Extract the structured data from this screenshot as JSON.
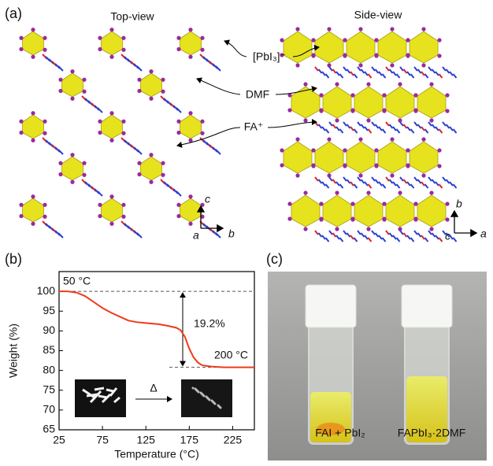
{
  "panel_a": {
    "label": "(a)",
    "top_view": "Top-view",
    "side_view": "Side-view",
    "annotations": [
      "[PbI₃]⁻",
      "DMF",
      "FA⁺"
    ],
    "top_axes": {
      "up": "c",
      "left": "a",
      "right": "b"
    },
    "side_axes": {
      "up": "b",
      "left": "c",
      "right": "a"
    }
  },
  "chart_data": {
    "type": "line",
    "label": "(b)",
    "x_label": "Temperature (°C)",
    "y_label": "Weight (%)",
    "x": [
      25,
      35,
      45,
      55,
      65,
      75,
      85,
      95,
      105,
      115,
      125,
      140,
      150,
      160,
      165,
      170,
      175,
      180,
      185,
      190,
      200,
      215,
      230,
      250
    ],
    "series": [
      {
        "name": "FAPbI₃·2DMF",
        "color": "#ee3a1c",
        "values": [
          100,
          100,
          99.7,
          98.8,
          97.3,
          95.8,
          94.6,
          93.6,
          92.6,
          92.2,
          92,
          91.7,
          91.3,
          90.8,
          90.2,
          88.5,
          85.5,
          83.3,
          82,
          81.3,
          81,
          80.8,
          80.8,
          80.8
        ]
      }
    ],
    "xlim": [
      25,
      250
    ],
    "xticks": [
      25,
      75,
      125,
      175,
      225
    ],
    "ylim": [
      65,
      105
    ],
    "yticks": [
      65,
      70,
      75,
      80,
      85,
      90,
      95,
      100
    ],
    "reference_lines": [
      100,
      80.8
    ],
    "annotations": [
      "50 °C",
      "19.2%",
      "200 °C",
      "Δ"
    ]
  },
  "panel_c": {
    "label": "(c)",
    "captions": [
      "FAI + PbI₂",
      "FAPbI₃·2DMF"
    ]
  }
}
